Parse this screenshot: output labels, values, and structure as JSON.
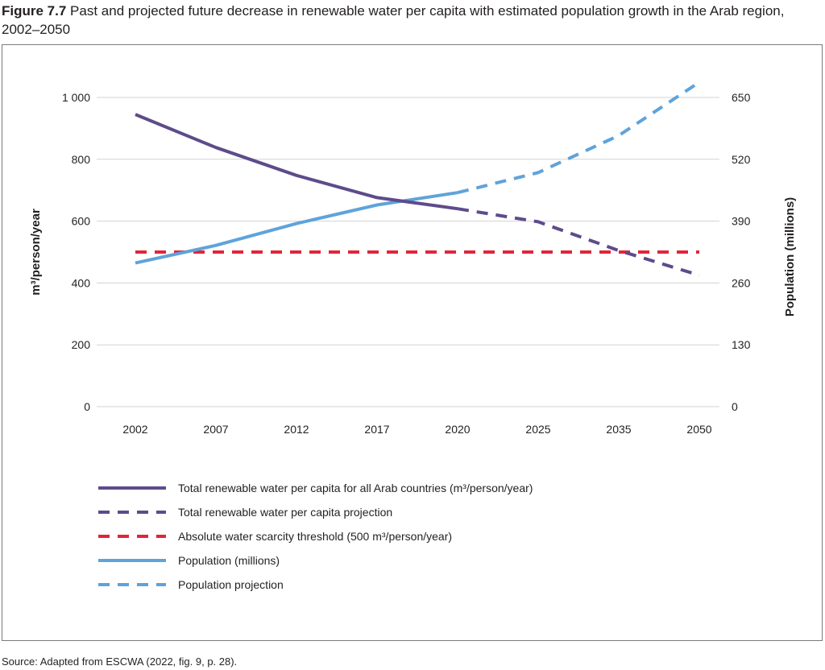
{
  "figure": {
    "label": "Figure 7.7",
    "caption": "Past and projected future decrease in renewable water per capita with estimated population growth in the Arab region, 2002–2050"
  },
  "source": "Source: Adapted from ESCWA (2022, fig. 9, p. 28).",
  "colors": {
    "water": "#5e4b8b",
    "threshold": "#e0263a",
    "population": "#5fa3da",
    "grid": "#d3d3d3"
  },
  "chart_data": {
    "type": "line",
    "categories": [
      "2002",
      "2007",
      "2012",
      "2017",
      "2020",
      "2025",
      "2035",
      "2050"
    ],
    "y_left": {
      "label": "m³/person/year",
      "ylim": [
        0,
        1000
      ],
      "ticks": [
        0,
        200,
        400,
        600,
        800,
        1000
      ],
      "tick_labels": [
        "0",
        "200",
        "400",
        "600",
        "800",
        "1 000"
      ]
    },
    "y_right": {
      "label": "Population (millions)",
      "ylim": [
        0,
        650
      ],
      "ticks": [
        0,
        130,
        260,
        390,
        520,
        650
      ],
      "tick_labels": [
        "0",
        "130",
        "260",
        "390",
        "520",
        "650"
      ]
    },
    "grid": true,
    "legend_position": "bottom",
    "series": [
      {
        "name": "Total renewable water per capita for all Arab countries (m³/person/year)",
        "axis": "left",
        "style": "solid",
        "color": "#5e4b8b",
        "values": [
          945,
          838,
          748,
          676,
          640,
          null,
          null,
          null
        ]
      },
      {
        "name": "Total renewable water per capita projection",
        "axis": "left",
        "style": "dashed",
        "color": "#5e4b8b",
        "values": [
          null,
          null,
          null,
          null,
          640,
          598,
          505,
          425
        ]
      },
      {
        "name": "Absolute water scarcity threshold (500 m³/person/year)",
        "axis": "left",
        "style": "dashed",
        "color": "#e0263a",
        "values": [
          500,
          500,
          500,
          500,
          500,
          500,
          500,
          500
        ]
      },
      {
        "name": "Population (millions)",
        "axis": "right",
        "style": "solid",
        "color": "#5fa3da",
        "values": [
          302,
          339,
          385,
          424,
          450,
          null,
          null,
          null
        ]
      },
      {
        "name": "Population projection",
        "axis": "right",
        "style": "dashed",
        "color": "#5fa3da",
        "values": [
          null,
          null,
          null,
          null,
          450,
          492,
          570,
          682
        ]
      }
    ]
  }
}
